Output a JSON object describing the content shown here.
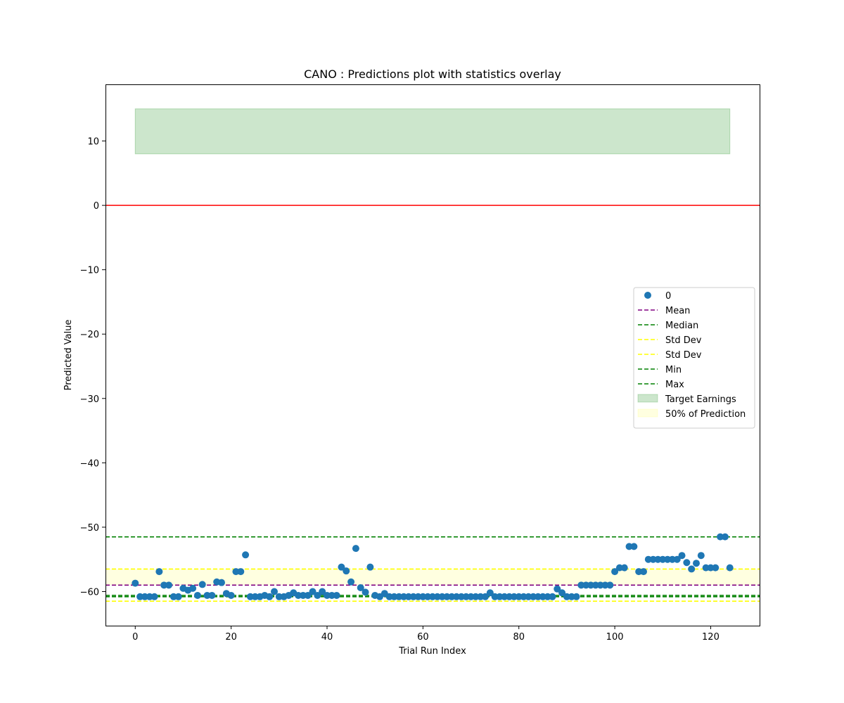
{
  "chart_data": {
    "type": "scatter",
    "title": "CANO : Predictions plot with statistics overlay",
    "xlabel": "Trial Run Index",
    "ylabel": "Predicted Value",
    "xlim": [
      -6.2,
      130.2
    ],
    "ylim": [
      -65.3,
      18.8
    ],
    "xticks": [
      0,
      20,
      40,
      60,
      80,
      100,
      120
    ],
    "yticks": [
      10,
      0,
      -10,
      -20,
      -30,
      -40,
      -50,
      -60
    ],
    "ytick_labels": [
      "10",
      "0",
      "−10",
      "−20",
      "−30",
      "−40",
      "−50",
      "−60"
    ],
    "grid": false,
    "legend_position": "center-right",
    "series": [
      {
        "name": "0",
        "color": "#1f77b4",
        "x": [
          0,
          1,
          2,
          3,
          4,
          5,
          6,
          7,
          8,
          9,
          10,
          11,
          12,
          13,
          14,
          15,
          16,
          17,
          18,
          19,
          20,
          21,
          22,
          23,
          24,
          25,
          26,
          27,
          28,
          29,
          30,
          31,
          32,
          33,
          34,
          35,
          36,
          37,
          38,
          39,
          40,
          41,
          42,
          43,
          44,
          45,
          46,
          47,
          48,
          49,
          50,
          51,
          52,
          53,
          54,
          55,
          56,
          57,
          58,
          59,
          60,
          61,
          62,
          63,
          64,
          65,
          66,
          67,
          68,
          69,
          70,
          71,
          72,
          73,
          74,
          75,
          76,
          77,
          78,
          79,
          80,
          81,
          82,
          83,
          84,
          85,
          86,
          87,
          88,
          89,
          90,
          91,
          92,
          93,
          94,
          95,
          96,
          97,
          98,
          99,
          100,
          101,
          102,
          103,
          104,
          105,
          106,
          107,
          108,
          109,
          110,
          111,
          112,
          113,
          114,
          115,
          116,
          117,
          118,
          119,
          120,
          121,
          122,
          123,
          124
        ],
        "y": [
          -58.7,
          -60.8,
          -60.8,
          -60.8,
          -60.8,
          -56.9,
          -59.0,
          -59.0,
          -60.8,
          -60.8,
          -59.5,
          -59.8,
          -59.5,
          -60.6,
          -58.9,
          -60.6,
          -60.6,
          -58.5,
          -58.6,
          -60.3,
          -60.6,
          -56.9,
          -56.9,
          -54.3,
          -60.8,
          -60.8,
          -60.8,
          -60.6,
          -60.8,
          -60.0,
          -60.8,
          -60.8,
          -60.6,
          -60.2,
          -60.6,
          -60.6,
          -60.6,
          -60.0,
          -60.6,
          -60.0,
          -60.6,
          -60.6,
          -60.6,
          -56.2,
          -56.8,
          -58.5,
          -53.3,
          -59.4,
          -60.1,
          -56.2,
          -60.6,
          -60.8,
          -60.3,
          -60.8,
          -60.8,
          -60.8,
          -60.8,
          -60.8,
          -60.8,
          -60.8,
          -60.8,
          -60.8,
          -60.8,
          -60.8,
          -60.8,
          -60.8,
          -60.8,
          -60.8,
          -60.8,
          -60.8,
          -60.8,
          -60.8,
          -60.8,
          -60.8,
          -60.2,
          -60.8,
          -60.8,
          -60.8,
          -60.8,
          -60.8,
          -60.8,
          -60.8,
          -60.8,
          -60.8,
          -60.8,
          -60.8,
          -60.8,
          -60.8,
          -59.6,
          -60.2,
          -60.8,
          -60.8,
          -60.8,
          -59.0,
          -59.0,
          -59.0,
          -59.0,
          -59.0,
          -59.0,
          -59.0,
          -56.9,
          -56.3,
          -56.3,
          -53.0,
          -53.0,
          -56.9,
          -56.9,
          -55.0,
          -55.0,
          -55.0,
          -55.0,
          -55.0,
          -55.0,
          -55.0,
          -54.4,
          -55.5,
          -56.5,
          -55.6,
          -54.4,
          -56.3,
          -56.3,
          -56.3,
          -51.5,
          -51.5,
          -56.3
        ]
      }
    ],
    "hlines": [
      {
        "name": "zero-line",
        "value": 0,
        "color": "#ff0000",
        "style": "solid"
      },
      {
        "name": "Mean",
        "value": -59.0,
        "color": "#800080",
        "style": "dashed"
      },
      {
        "name": "Median",
        "value": -60.6,
        "color": "#008000",
        "style": "dashed"
      },
      {
        "name": "Std Dev",
        "value": -56.5,
        "color": "#ffff00",
        "style": "dashed"
      },
      {
        "name": "Std Dev",
        "value": -61.5,
        "color": "#ffff00",
        "style": "dashed"
      },
      {
        "name": "Min",
        "value": -60.8,
        "color": "#008000",
        "style": "dashed"
      },
      {
        "name": "Max",
        "value": -51.5,
        "color": "#008000",
        "style": "dashed"
      }
    ],
    "bands": [
      {
        "name": "Target Earnings",
        "x_range": [
          0,
          124
        ],
        "y_range": [
          8,
          15
        ],
        "color": "#008000",
        "opacity": 0.2
      },
      {
        "name": "50% of Prediction",
        "y_range": [
          -59.0,
          -56.5
        ],
        "color": "#ffff00",
        "opacity": 0.12
      }
    ],
    "legend": [
      {
        "label": "0",
        "kind": "marker",
        "color": "#1f77b4"
      },
      {
        "label": "Mean",
        "kind": "dashed",
        "color": "#800080"
      },
      {
        "label": "Median",
        "kind": "dashed",
        "color": "#008000"
      },
      {
        "label": "Std Dev",
        "kind": "dashed",
        "color": "#ffff00"
      },
      {
        "label": "Std Dev",
        "kind": "dashed",
        "color": "#ffff00"
      },
      {
        "label": "Min",
        "kind": "dashed",
        "color": "#008000"
      },
      {
        "label": "Max",
        "kind": "dashed",
        "color": "#008000"
      },
      {
        "label": "Target Earnings",
        "kind": "patch",
        "color": "#008000",
        "opacity": 0.2
      },
      {
        "label": "50% of Prediction",
        "kind": "patch",
        "color": "#ffff00",
        "opacity": 0.12
      }
    ]
  }
}
